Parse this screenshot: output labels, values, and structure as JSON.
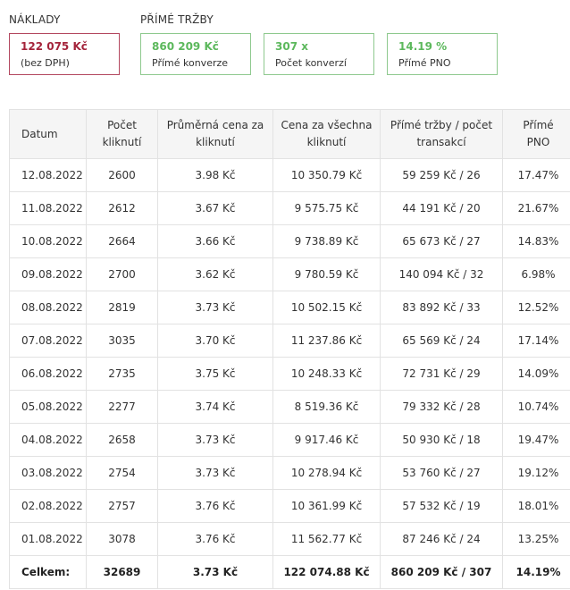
{
  "naklady": {
    "title": "NÁKLADY",
    "value": "122 075 Kč",
    "sub": "(bez DPH)"
  },
  "trzby": {
    "title": "PŘÍMÉ TRŽBY",
    "cards": [
      {
        "value": "860 209 Kč",
        "sub": "Přímé konverze"
      },
      {
        "value": "307 x",
        "sub": "Počet konverzí"
      },
      {
        "value": "14.19 %",
        "sub": "Přímé PNO"
      }
    ]
  },
  "colors": {
    "red": "#a4243b",
    "green": "#5cb85c"
  },
  "table": {
    "headers": {
      "datum": "Datum",
      "kliky_l1": "Počet",
      "kliky_l2": "kliknutí",
      "cena_l1": "Průměrná cena za",
      "cena_l2": "kliknutí",
      "celkem_l1": "Cena za všechna",
      "celkem_l2": "kliknutí",
      "trzby_l1": "Přímé tržby / počet",
      "trzby_l2": "transakcí",
      "pno_l1": "Přímé",
      "pno_l2": "PNO"
    },
    "rows": [
      {
        "datum": "12.08.2022",
        "kliky": "2600",
        "cena": "3.98 Kč",
        "celkem": "10 350.79 Kč",
        "trzby": "59 259 Kč / 26",
        "pno": "17.47%"
      },
      {
        "datum": "11.08.2022",
        "kliky": "2612",
        "cena": "3.67 Kč",
        "celkem": "9 575.75 Kč",
        "trzby": "44 191 Kč / 20",
        "pno": "21.67%"
      },
      {
        "datum": "10.08.2022",
        "kliky": "2664",
        "cena": "3.66 Kč",
        "celkem": "9 738.89 Kč",
        "trzby": "65 673 Kč / 27",
        "pno": "14.83%"
      },
      {
        "datum": "09.08.2022",
        "kliky": "2700",
        "cena": "3.62 Kč",
        "celkem": "9 780.59 Kč",
        "trzby": "140 094 Kč / 32",
        "pno": "6.98%"
      },
      {
        "datum": "08.08.2022",
        "kliky": "2819",
        "cena": "3.73 Kč",
        "celkem": "10 502.15 Kč",
        "trzby": "83 892 Kč / 33",
        "pno": "12.52%"
      },
      {
        "datum": "07.08.2022",
        "kliky": "3035",
        "cena": "3.70 Kč",
        "celkem": "11 237.86 Kč",
        "trzby": "65 569 Kč / 24",
        "pno": "17.14%"
      },
      {
        "datum": "06.08.2022",
        "kliky": "2735",
        "cena": "3.75 Kč",
        "celkem": "10 248.33 Kč",
        "trzby": "72 731 Kč / 29",
        "pno": "14.09%"
      },
      {
        "datum": "05.08.2022",
        "kliky": "2277",
        "cena": "3.74 Kč",
        "celkem": "8 519.36 Kč",
        "trzby": "79 332 Kč / 28",
        "pno": "10.74%"
      },
      {
        "datum": "04.08.2022",
        "kliky": "2658",
        "cena": "3.73 Kč",
        "celkem": "9 917.46 Kč",
        "trzby": "50 930 Kč / 18",
        "pno": "19.47%"
      },
      {
        "datum": "03.08.2022",
        "kliky": "2754",
        "cena": "3.73 Kč",
        "celkem": "10 278.94 Kč",
        "trzby": "53 760 Kč / 27",
        "pno": "19.12%"
      },
      {
        "datum": "02.08.2022",
        "kliky": "2757",
        "cena": "3.76 Kč",
        "celkem": "10 361.99 Kč",
        "trzby": "57 532 Kč / 19",
        "pno": "18.01%"
      },
      {
        "datum": "01.08.2022",
        "kliky": "3078",
        "cena": "3.76 Kč",
        "celkem": "11 562.77 Kč",
        "trzby": "87 246 Kč / 24",
        "pno": "13.25%"
      }
    ],
    "total": {
      "label": "Celkem:",
      "kliky": "32689",
      "cena": "3.73 Kč",
      "celkem": "122 074.88 Kč",
      "trzby": "860 209 Kč / 307",
      "pno": "14.19%"
    }
  }
}
